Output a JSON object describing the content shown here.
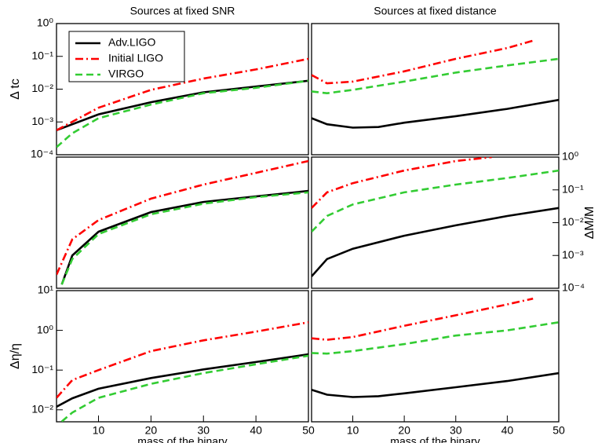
{
  "chart_data": [
    {
      "type": "line",
      "title": "Sources at fixed SNR",
      "ylabel": "Δ tc",
      "log_y": true,
      "xlim": [
        2,
        50
      ],
      "ylim": [
        0.0001,
        1
      ],
      "yticks": [
        {
          "value": 0.0001,
          "label": "10⁻⁴"
        },
        {
          "value": 0.001,
          "label": "10⁻³"
        },
        {
          "value": 0.01,
          "label": "10⁻²"
        },
        {
          "value": 0.1,
          "label": "10⁻¹"
        },
        {
          "value": 1,
          "label": "10⁰"
        }
      ],
      "legend": "upper left",
      "series": [
        {
          "name": "Adv.LIGO",
          "color": "#000000",
          "dash": "solid",
          "x": [
            2,
            10,
            20,
            30,
            40,
            50
          ],
          "values": [
            0.00056,
            0.0017,
            0.004,
            0.008,
            0.012,
            0.018
          ]
        },
        {
          "name": "Initial LIGO",
          "color": "#ff0000",
          "dash": "dashdot",
          "x": [
            2,
            10,
            20,
            30,
            40,
            50
          ],
          "values": [
            0.00056,
            0.0027,
            0.0095,
            0.021,
            0.04,
            0.084
          ]
        },
        {
          "name": "VIRGO",
          "color": "#33cc33",
          "dash": "dashed",
          "x": [
            2,
            5,
            10,
            20,
            30,
            40,
            50
          ],
          "values": [
            0.00017,
            0.00045,
            0.0013,
            0.0034,
            0.0075,
            0.011,
            0.018
          ]
        }
      ]
    },
    {
      "type": "line",
      "title": "Sources at fixed distance",
      "log_y": true,
      "xlim": [
        2,
        50
      ],
      "ylim": [
        0.0001,
        1
      ],
      "series": [
        {
          "color": "#000000",
          "dash": "solid",
          "x": [
            2,
            5,
            10,
            15,
            20,
            30,
            40,
            50
          ],
          "values": [
            0.0013,
            0.00085,
            0.00067,
            0.0007,
            0.00095,
            0.0015,
            0.0025,
            0.0047
          ]
        },
        {
          "color": "#ff0000",
          "dash": "dashdot",
          "x": [
            2,
            5,
            10,
            20,
            30,
            40,
            45
          ],
          "values": [
            0.027,
            0.015,
            0.017,
            0.035,
            0.084,
            0.18,
            0.3
          ]
        },
        {
          "color": "#33cc33",
          "dash": "dashed",
          "x": [
            2,
            5,
            10,
            20,
            30,
            40,
            50
          ],
          "values": [
            0.0085,
            0.0075,
            0.0095,
            0.017,
            0.032,
            0.053,
            0.084
          ]
        }
      ]
    },
    {
      "type": "line",
      "log_y": true,
      "xlim": [
        2,
        50
      ],
      "ylim": [
        0.0001,
        1
      ],
      "series": [
        {
          "color": "#000000",
          "dash": "solid",
          "x": [
            3,
            5,
            10,
            20,
            30,
            40,
            50
          ],
          "values": [
            0.00013,
            0.001,
            0.0053,
            0.021,
            0.043,
            0.063,
            0.093
          ]
        },
        {
          "color": "#ff0000",
          "dash": "dashdot",
          "x": [
            2,
            5,
            10,
            20,
            30,
            40,
            50
          ],
          "values": [
            0.00026,
            0.0031,
            0.012,
            0.054,
            0.145,
            0.33,
            0.76
          ]
        },
        {
          "color": "#33cc33",
          "dash": "dashed",
          "x": [
            3,
            5,
            10,
            20,
            30,
            40,
            50
          ],
          "values": [
            0.00013,
            0.00078,
            0.0045,
            0.018,
            0.038,
            0.06,
            0.084
          ]
        }
      ]
    },
    {
      "type": "line",
      "ylabel": "ΔM/M",
      "log_y": true,
      "yaxis_side": "right",
      "xlim": [
        2,
        50
      ],
      "ylim": [
        0.0001,
        1
      ],
      "yticks": [
        {
          "value": 0.0001,
          "label": "10⁻⁴"
        },
        {
          "value": 0.001,
          "label": "10⁻³"
        },
        {
          "value": 0.01,
          "label": "10⁻²"
        },
        {
          "value": 0.1,
          "label": "10⁻¹"
        },
        {
          "value": 1,
          "label": "10⁰"
        }
      ],
      "series": [
        {
          "color": "#000000",
          "dash": "solid",
          "x": [
            2,
            5,
            10,
            20,
            30,
            40,
            50
          ],
          "values": [
            0.00023,
            0.00078,
            0.0016,
            0.004,
            0.0083,
            0.016,
            0.028
          ]
        },
        {
          "color": "#ff0000",
          "dash": "dashdot",
          "x": [
            2,
            5,
            10,
            20,
            30,
            37
          ],
          "values": [
            0.028,
            0.084,
            0.16,
            0.39,
            0.76,
            1
          ]
        },
        {
          "color": "#33cc33",
          "dash": "dashed",
          "x": [
            2,
            5,
            10,
            20,
            30,
            40,
            50
          ],
          "values": [
            0.0053,
            0.016,
            0.036,
            0.084,
            0.145,
            0.23,
            0.39
          ]
        }
      ]
    },
    {
      "type": "line",
      "ylabel": "Δη/η",
      "xlabel": "mass of the binary",
      "log_y": true,
      "xlim": [
        2,
        50
      ],
      "ylim": [
        0.005,
        10
      ],
      "xticks": [
        10,
        20,
        30,
        40,
        50
      ],
      "yticks": [
        {
          "value": 0.01,
          "label": "10⁻²"
        },
        {
          "value": 0.1,
          "label": "10⁻¹"
        },
        {
          "value": 1,
          "label": "10⁰"
        },
        {
          "value": 10,
          "label": "10¹"
        }
      ],
      "series": [
        {
          "color": "#000000",
          "dash": "solid",
          "x": [
            2,
            5,
            10,
            20,
            30,
            40,
            50
          ],
          "values": [
            0.012,
            0.0195,
            0.034,
            0.063,
            0.104,
            0.16,
            0.25
          ]
        },
        {
          "color": "#ff0000",
          "dash": "dashdot",
          "x": [
            2,
            5,
            10,
            20,
            30,
            40,
            50
          ],
          "values": [
            0.02,
            0.056,
            0.1,
            0.3,
            0.56,
            0.93,
            1.6
          ]
        },
        {
          "color": "#33cc33",
          "dash": "dashed",
          "x": [
            3,
            5,
            10,
            20,
            30,
            40,
            50
          ],
          "values": [
            0.0051,
            0.0085,
            0.02,
            0.045,
            0.084,
            0.14,
            0.23
          ]
        }
      ]
    },
    {
      "type": "line",
      "xlabel": "mass of the binary",
      "log_y": true,
      "xlim": [
        2,
        50
      ],
      "ylim": [
        0.005,
        10
      ],
      "xticks": [
        10,
        20,
        30,
        40,
        50
      ],
      "series": [
        {
          "color": "#000000",
          "dash": "solid",
          "x": [
            2,
            5,
            10,
            15,
            20,
            30,
            40,
            50
          ],
          "values": [
            0.032,
            0.024,
            0.021,
            0.022,
            0.026,
            0.037,
            0.053,
            0.084
          ]
        },
        {
          "color": "#ff0000",
          "dash": "dashdot",
          "x": [
            2,
            5,
            10,
            20,
            30,
            40,
            45
          ],
          "values": [
            0.63,
            0.58,
            0.68,
            1.3,
            2.4,
            4.5,
            6.3
          ]
        },
        {
          "color": "#33cc33",
          "dash": "dashed",
          "x": [
            2,
            5,
            10,
            20,
            30,
            40,
            50
          ],
          "values": [
            0.27,
            0.26,
            0.3,
            0.45,
            0.74,
            1.0,
            1.6
          ]
        }
      ]
    }
  ]
}
